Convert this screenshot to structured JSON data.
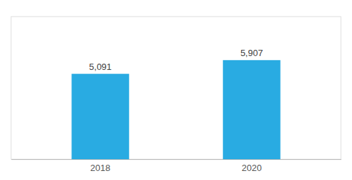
{
  "chart_data": {
    "type": "bar",
    "categories": [
      "2018",
      "2020"
    ],
    "values": [
      5091,
      5907
    ],
    "value_labels": [
      "5,091",
      "5,907"
    ],
    "color": "#29ABE2",
    "ylim": [
      0,
      8500
    ],
    "data_labels": true,
    "tick_labels": "x"
  }
}
